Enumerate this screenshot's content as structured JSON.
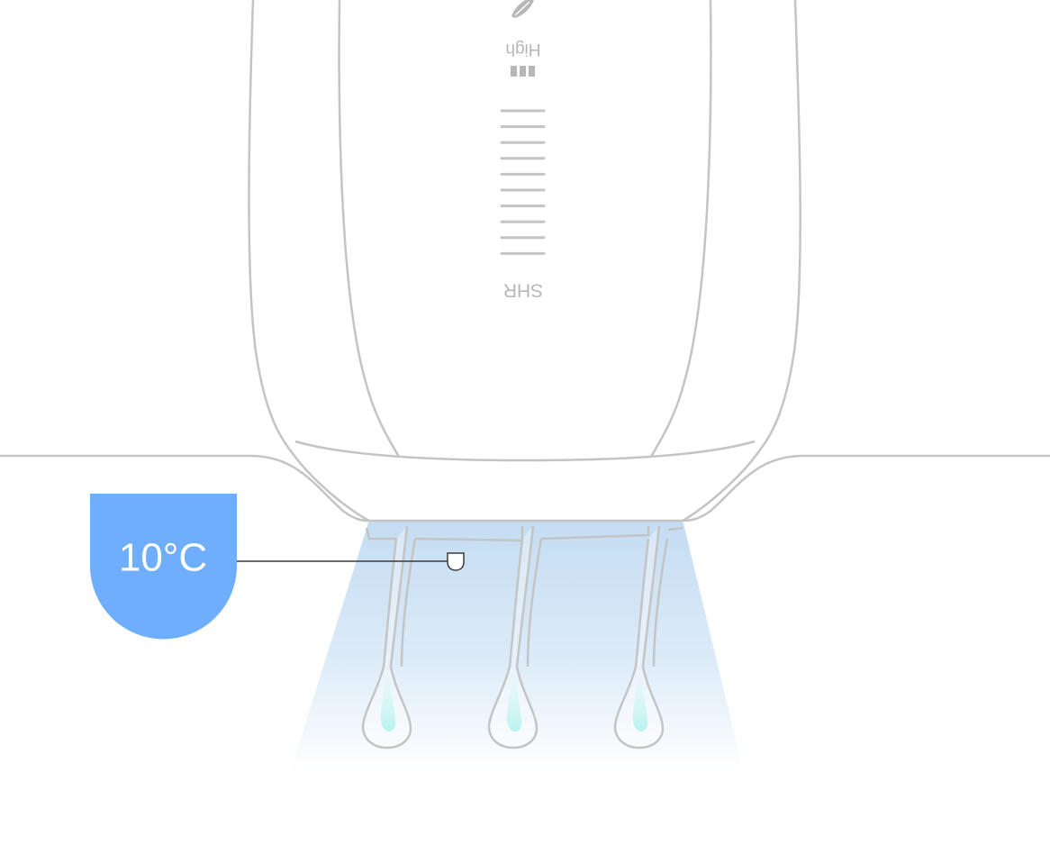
{
  "device": {
    "intensity_label": "High",
    "mode_label": "SHR",
    "intensity_level": 3,
    "intensity_max": 3,
    "slot_count": 10
  },
  "temperature": {
    "value": "10°C"
  },
  "colors": {
    "outline": "#c4c4c4",
    "badge": "#6eaefc",
    "beam_top": "#c7def2",
    "hair_core": "#b8f3ef",
    "leader": "#3a3a3a"
  },
  "icons": {
    "leaf": "leaf-icon",
    "intensity": "signal-bars-icon"
  }
}
